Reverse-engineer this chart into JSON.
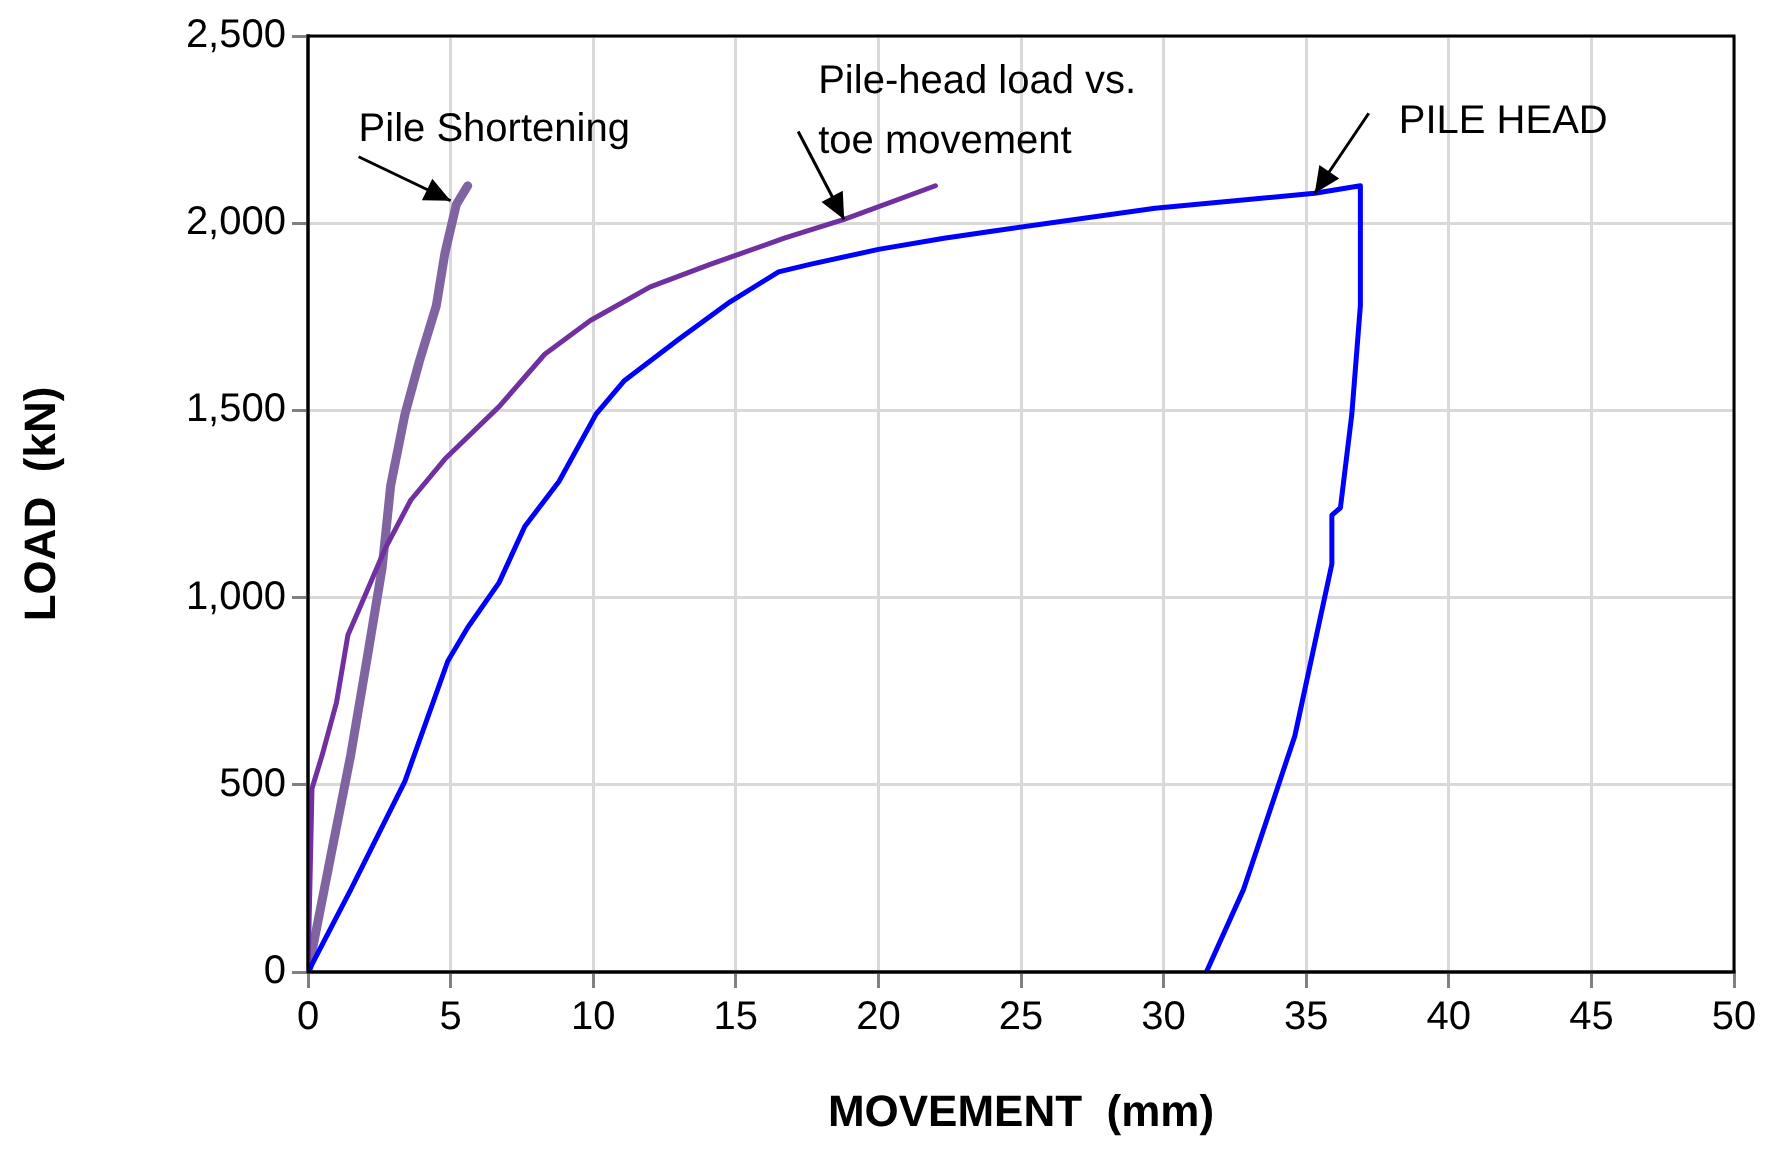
{
  "chart_data": {
    "type": "line",
    "xlabel": "MOVEMENT  (mm)",
    "ylabel": "LOAD  (kN)",
    "xlim": [
      0,
      50
    ],
    "xticks": [
      0,
      5,
      10,
      15,
      20,
      25,
      30,
      35,
      40,
      45,
      50
    ],
    "ylim": [
      0,
      2500
    ],
    "yticks": [
      0,
      {
        "value": 500,
        "label": "500"
      },
      {
        "value": 1000,
        "label": "1,000"
      },
      {
        "value": 1500,
        "label": "1,500"
      },
      {
        "value": 2000,
        "label": "2,000"
      },
      {
        "value": 2500,
        "label": "2,500"
      }
    ],
    "grid": true,
    "legend": false,
    "marker": "none",
    "line_style": "solid",
    "series": [
      {
        "color": "#0000ff",
        "x": [
          0,
          1.5,
          3.4,
          4.9,
          5.6,
          6.7,
          7.6,
          8.8,
          10.1,
          11.1,
          13.0,
          14.8,
          16.5,
          17.6,
          20.0,
          22.3,
          24.1,
          29.7,
          35.3,
          36.9,
          36.9,
          36.6,
          36.2,
          35.9,
          35.9,
          34.6,
          32.8,
          31.5
        ],
        "values": [
          0,
          220,
          510,
          830,
          920,
          1040,
          1190,
          1310,
          1490,
          1580,
          1690,
          1790,
          1870,
          1890,
          1930,
          1960,
          1980,
          2040,
          2080,
          2100,
          1780,
          1490,
          1240,
          1220,
          1090,
          630,
          220,
          0
        ]
      },
      {
        "color": "#7030a0",
        "x": [
          0,
          0.14,
          0.5,
          1.0,
          1.4,
          1.8,
          2.7,
          3.6,
          4.8,
          6.7,
          8.3,
          9.9,
          12.0,
          14.1,
          16.7,
          18.8,
          22.0
        ],
        "values": [
          0,
          490,
          580,
          720,
          900,
          970,
          1130,
          1260,
          1370,
          1510,
          1650,
          1740,
          1830,
          1890,
          1960,
          2010,
          2100
        ]
      },
      {
        "color": "#8064a2",
        "x": [
          0,
          0.8,
          1.5,
          2.1,
          2.6,
          2.9,
          3.4,
          3.9,
          4.5,
          4.8,
          5.2,
          5.6
        ],
        "values": [
          0,
          310,
          580,
          850,
          1080,
          1300,
          1490,
          1630,
          1780,
          1920,
          2050,
          2100
        ]
      }
    ],
    "annotations": [
      {
        "text": "Pile Shortening",
        "x": 5.0,
        "y": 2060
      },
      {
        "text": "Pile-head load vs.\ntoe movement",
        "x": 18.8,
        "y": 2010
      },
      {
        "text": "PILE HEAD",
        "x": 35.3,
        "y": 2080
      }
    ]
  }
}
